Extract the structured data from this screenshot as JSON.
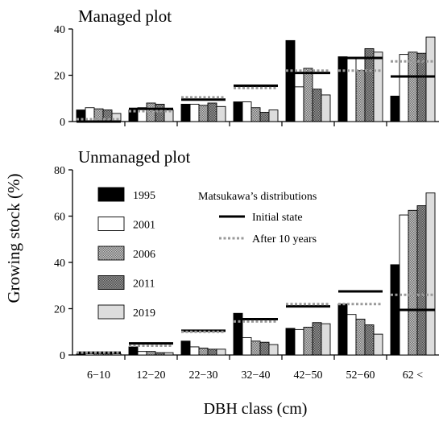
{
  "chart_data": [
    {
      "type": "bar",
      "title": "Managed plot",
      "ylim": [
        0,
        40
      ],
      "yticks": [
        0,
        20,
        40
      ],
      "categories": [
        "6−10",
        "12−20",
        "22−30",
        "32−40",
        "42−50",
        "52−60",
        "62 <"
      ],
      "series": [
        {
          "name": "1995",
          "values": [
            5,
            5,
            7.5,
            8.5,
            35,
            28,
            11
          ]
        },
        {
          "name": "2001",
          "values": [
            6,
            6,
            7.5,
            8.5,
            15,
            27.5,
            29
          ]
        },
        {
          "name": "2006",
          "values": [
            5.5,
            8,
            7,
            6,
            23,
            22,
            30
          ]
        },
        {
          "name": "2011",
          "values": [
            5,
            7.5,
            8,
            4,
            14,
            31.5,
            29.5
          ]
        },
        {
          "name": "2019",
          "values": [
            3.5,
            5,
            6.5,
            5,
            11.5,
            30,
            36.5
          ]
        }
      ],
      "reference_lines": {
        "initial_state": [
          0,
          5.5,
          9.5,
          15.5,
          21,
          27.5,
          19.5
        ],
        "after_10_years": [
          1,
          4.5,
          10.5,
          14.5,
          22,
          22,
          26
        ]
      }
    },
    {
      "type": "bar",
      "title": "Unmanaged plot",
      "ylim": [
        0,
        80
      ],
      "yticks": [
        0,
        20,
        40,
        60,
        80
      ],
      "categories": [
        "6−10",
        "12−20",
        "22−30",
        "32−40",
        "42−50",
        "52−60",
        "62 <"
      ],
      "series": [
        {
          "name": "1995",
          "values": [
            0.5,
            3.5,
            6,
            18,
            11.5,
            22,
            39
          ]
        },
        {
          "name": "2001",
          "values": [
            0.5,
            1.5,
            3.5,
            7.5,
            11,
            17.5,
            60.5
          ]
        },
        {
          "name": "2006",
          "values": [
            0.5,
            1.5,
            3,
            6,
            12,
            15.5,
            62.5
          ]
        },
        {
          "name": "2011",
          "values": [
            0.5,
            1,
            2.5,
            5.5,
            14,
            13,
            64.5
          ]
        },
        {
          "name": "2019",
          "values": [
            0.5,
            1,
            2.5,
            4.5,
            13.5,
            9,
            70
          ]
        }
      ],
      "reference_lines": {
        "initial_state": [
          1,
          5,
          10.5,
          15.5,
          21,
          27.5,
          19.5
        ],
        "after_10_years": [
          1,
          4,
          10,
          14.5,
          22,
          22,
          26
        ]
      }
    }
  ],
  "legend": {
    "series": [
      "1995",
      "2001",
      "2006",
      "2011",
      "2019"
    ],
    "reference_title": "Matsukawa’s distributions",
    "reference_lines": [
      "Initial state",
      "After 10 years"
    ]
  },
  "axes": {
    "ylabel": "Growing stock (%)",
    "xlabel": "DBH class (cm)"
  },
  "colors": {
    "1995": "#000000",
    "2001": "#ffffff",
    "2006": "#a9a9a9",
    "2011": "#7d7d7d",
    "2019": "#dddddd",
    "initial_state": "#000000",
    "after_10_years": "#9a9a9a"
  }
}
